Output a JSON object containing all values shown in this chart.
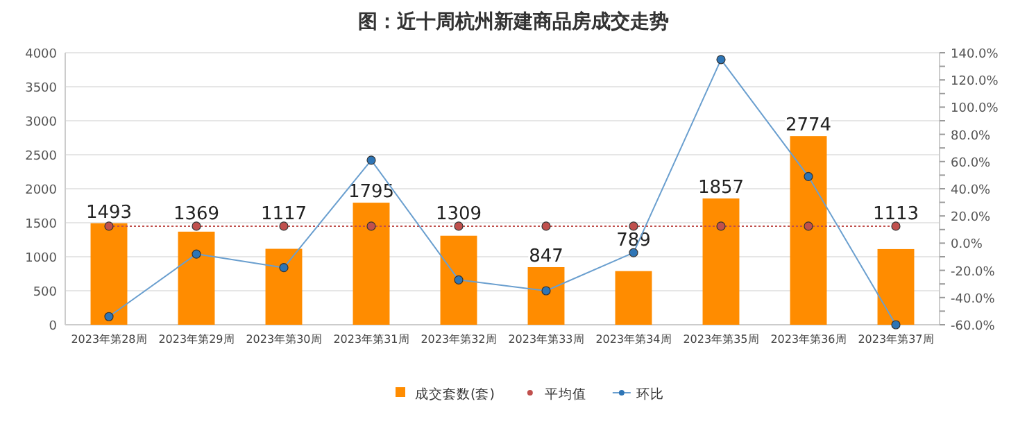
{
  "chart_data": {
    "type": "bar",
    "title": "图：近十周杭州新建商品房成交走势",
    "categories": [
      "2023年第28周",
      "2023年第29周",
      "2023年第30周",
      "2023年第31周",
      "2023年第32周",
      "2023年第33周",
      "2023年第34周",
      "2023年第35周",
      "2023年第36周",
      "2023年第37周"
    ],
    "series": [
      {
        "name": "成交套数(套)",
        "color": "#ff8c00",
        "data_labels": true,
        "values": [
          1493,
          1369,
          1117,
          1795,
          1309,
          847,
          789,
          1857,
          2774,
          1113
        ]
      },
      {
        "name": "平均值",
        "type": "line",
        "color": "#c0504d",
        "line_style": "dotted",
        "marker": "circle",
        "values": [
          1450,
          1450,
          1450,
          1450,
          1450,
          1450,
          1450,
          1450,
          1450,
          1450
        ]
      },
      {
        "name": "环比",
        "type": "line",
        "axis": "y2",
        "color": "#6a9fcf",
        "line_style": "solid",
        "marker": "circle",
        "values": [
          -54,
          -8,
          -18,
          61,
          -27,
          -35,
          -7,
          135,
          49,
          -60
        ]
      }
    ],
    "ylim": [
      0,
      4000
    ],
    "yticks": [
      0,
      500,
      1000,
      1500,
      2000,
      2500,
      3000,
      3500,
      4000
    ],
    "y2lim": [
      -60,
      140
    ],
    "y2ticks": [
      {
        "value": -60,
        "label": "-60.0%"
      },
      {
        "value": -50,
        "label": null
      },
      {
        "value": -40,
        "label": "-40.0%"
      },
      {
        "value": -30,
        "label": null
      },
      {
        "value": -20,
        "label": "-20.0%"
      },
      {
        "value": -10,
        "label": null
      },
      {
        "value": 0,
        "label": "0.0%"
      },
      {
        "value": 10,
        "label": null
      },
      {
        "value": 20,
        "label": "20.0%"
      },
      {
        "value": 30,
        "label": null
      },
      {
        "value": 40,
        "label": "40.0%"
      },
      {
        "value": 50,
        "label": null
      },
      {
        "value": 60,
        "label": "60.0%"
      },
      {
        "value": 70,
        "label": null
      },
      {
        "value": 80,
        "label": "80.0%"
      },
      {
        "value": 90,
        "label": null
      },
      {
        "value": 100,
        "label": "100.0%"
      },
      {
        "value": 110,
        "label": null
      },
      {
        "value": 120,
        "label": "120.0%"
      },
      {
        "value": 130,
        "label": null
      },
      {
        "value": 140,
        "label": "140.0%"
      }
    ],
    "grid": "y",
    "legend": "bottom"
  }
}
